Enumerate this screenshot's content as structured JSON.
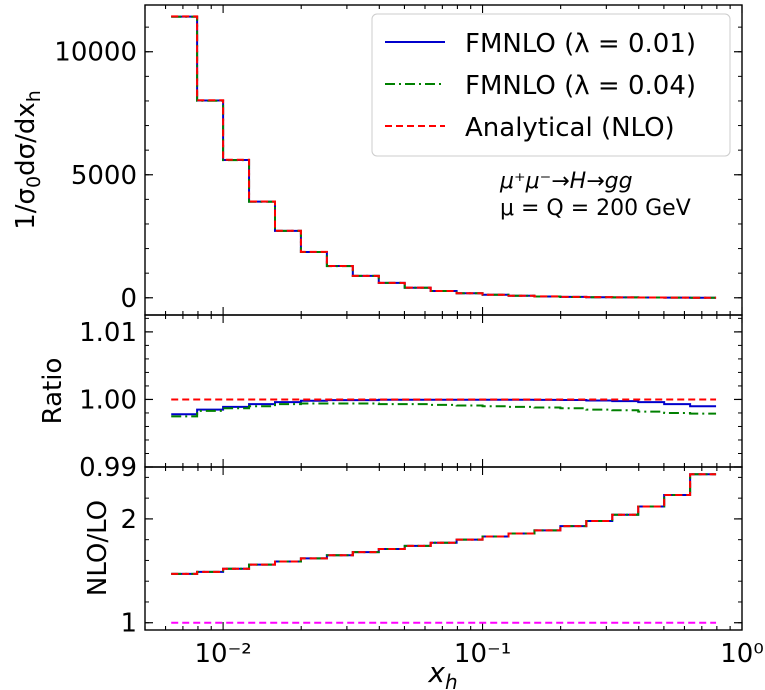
{
  "chart_data": [
    {
      "panel": "top",
      "type": "line",
      "ylabel": "1/σ₀dσ/dx_h",
      "xscale": "log",
      "xlim": [
        0.005,
        1.0
      ],
      "ylim": [
        -700,
        11900
      ],
      "yticks": [
        0,
        5000,
        10000
      ],
      "ytick_labels": [
        "0",
        "5000",
        "10000"
      ],
      "annotation_lines": [
        "μ⁺μ⁻→H→gg",
        "μ = Q = 200 GeV"
      ],
      "legend_position": "top-right",
      "bin_edges": [
        0.00631,
        0.00794,
        0.01,
        0.01259,
        0.01585,
        0.01995,
        0.02512,
        0.03162,
        0.03981,
        0.05012,
        0.0631,
        0.07943,
        0.1,
        0.1259,
        0.1585,
        0.1995,
        0.2512,
        0.3162,
        0.3981,
        0.5012,
        0.631,
        0.7943
      ],
      "series": [
        {
          "name": "FMNLO (λ = 0.01)",
          "color": "#0000cc",
          "style": "solid",
          "values": [
            11430,
            8020,
            5600,
            3910,
            2720,
            1860,
            1290,
            890,
            605,
            410,
            275,
            185,
            123,
            82,
            54,
            35,
            23,
            15,
            9.5,
            6,
            3.5
          ]
        },
        {
          "name": "FMNLO (λ = 0.04)",
          "color": "#008000",
          "style": "dashdot",
          "values": [
            11420,
            8010,
            5595,
            3905,
            2718,
            1859,
            1289,
            889,
            604,
            409,
            274,
            184,
            122,
            81,
            53,
            34,
            22,
            14,
            9,
            5.8,
            3.4
          ]
        },
        {
          "name": "Analytical (NLO)",
          "color": "#ff0000",
          "style": "dashed",
          "values": [
            11440,
            8030,
            5610,
            3915,
            2725,
            1865,
            1292,
            892,
            606,
            411,
            276,
            186,
            124,
            83,
            55,
            36,
            24,
            16,
            10,
            6.2,
            3.6
          ]
        }
      ]
    },
    {
      "panel": "middle",
      "type": "line",
      "ylabel": "Ratio",
      "xscale": "log",
      "xlim": [
        0.005,
        1.0
      ],
      "ylim": [
        0.99,
        1.0125
      ],
      "yticks": [
        0.99,
        1.0,
        1.01
      ],
      "ytick_labels": [
        "0.99",
        "1.00",
        "1.01"
      ],
      "bin_edges": [
        0.00631,
        0.00794,
        0.01,
        0.01259,
        0.01585,
        0.01995,
        0.02512,
        0.03162,
        0.03981,
        0.05012,
        0.0631,
        0.07943,
        0.1,
        0.1259,
        0.1585,
        0.1995,
        0.2512,
        0.3162,
        0.3981,
        0.5012,
        0.631,
        0.7943
      ],
      "series": [
        {
          "name": "FMNLO (λ = 0.01)",
          "color": "#0000cc",
          "style": "solid",
          "values": [
            0.9978,
            0.9985,
            0.9989,
            0.9993,
            0.9996,
            0.9998,
            0.9999,
            0.9999,
            0.99995,
            0.99995,
            0.99995,
            0.99995,
            0.99995,
            0.99995,
            0.99993,
            0.99991,
            0.99985,
            0.99975,
            0.9996,
            0.9993,
            0.999
          ]
        },
        {
          "name": "FMNLO (λ = 0.04)",
          "color": "#008000",
          "style": "dashdot",
          "values": [
            0.9975,
            0.9983,
            0.9987,
            0.999,
            0.9993,
            0.9994,
            0.9994,
            0.9994,
            0.9993,
            0.9993,
            0.9992,
            0.9991,
            0.999,
            0.9989,
            0.9988,
            0.9987,
            0.9985,
            0.9984,
            0.9982,
            0.998,
            0.9979
          ]
        },
        {
          "name": "Analytical (NLO)",
          "color": "#ff0000",
          "style": "dashed",
          "values": [
            1.0,
            1.0,
            1.0,
            1.0,
            1.0,
            1.0,
            1.0,
            1.0,
            1.0,
            1.0,
            1.0,
            1.0,
            1.0,
            1.0,
            1.0,
            1.0,
            1.0,
            1.0,
            1.0,
            1.0,
            1.0
          ]
        }
      ]
    },
    {
      "panel": "bottom",
      "type": "line",
      "ylabel": "NLO/LO",
      "xlabel": "x_h",
      "xscale": "log",
      "xlim": [
        0.005,
        1.0
      ],
      "ylim": [
        0.93,
        2.5
      ],
      "yticks": [
        1,
        2
      ],
      "ytick_labels": [
        "1",
        "2"
      ],
      "xticks": [
        0.01,
        0.1,
        1.0
      ],
      "xtick_labels": [
        "10⁻²",
        "10⁻¹",
        "10⁰"
      ],
      "bin_edges": [
        0.00631,
        0.00794,
        0.01,
        0.01259,
        0.01585,
        0.01995,
        0.02512,
        0.03162,
        0.03981,
        0.05012,
        0.0631,
        0.07943,
        0.1,
        0.1259,
        0.1585,
        0.1995,
        0.2512,
        0.3162,
        0.3981,
        0.5012,
        0.631,
        0.7943
      ],
      "series": [
        {
          "name": "FMNLO (λ = 0.01)",
          "color": "#0000cc",
          "style": "solid",
          "values": [
            1.47,
            1.49,
            1.52,
            1.56,
            1.59,
            1.62,
            1.65,
            1.68,
            1.71,
            1.74,
            1.77,
            1.8,
            1.83,
            1.86,
            1.89,
            1.93,
            1.98,
            2.04,
            2.12,
            2.23,
            2.43
          ]
        },
        {
          "name": "FMNLO (λ = 0.04)",
          "color": "#008000",
          "style": "dashdot",
          "values": [
            1.47,
            1.49,
            1.52,
            1.56,
            1.59,
            1.62,
            1.65,
            1.68,
            1.71,
            1.74,
            1.77,
            1.8,
            1.83,
            1.86,
            1.89,
            1.93,
            1.98,
            2.04,
            2.12,
            2.23,
            2.43
          ]
        },
        {
          "name": "Analytical (NLO)",
          "color": "#ff0000",
          "style": "dashed",
          "values": [
            1.47,
            1.49,
            1.52,
            1.56,
            1.59,
            1.62,
            1.65,
            1.68,
            1.71,
            1.74,
            1.77,
            1.8,
            1.83,
            1.86,
            1.89,
            1.93,
            1.98,
            2.04,
            2.12,
            2.23,
            2.43
          ]
        },
        {
          "name": "",
          "color": "#ff00ff",
          "style": "dashed",
          "values": [
            1,
            1
          ]
        }
      ]
    }
  ]
}
